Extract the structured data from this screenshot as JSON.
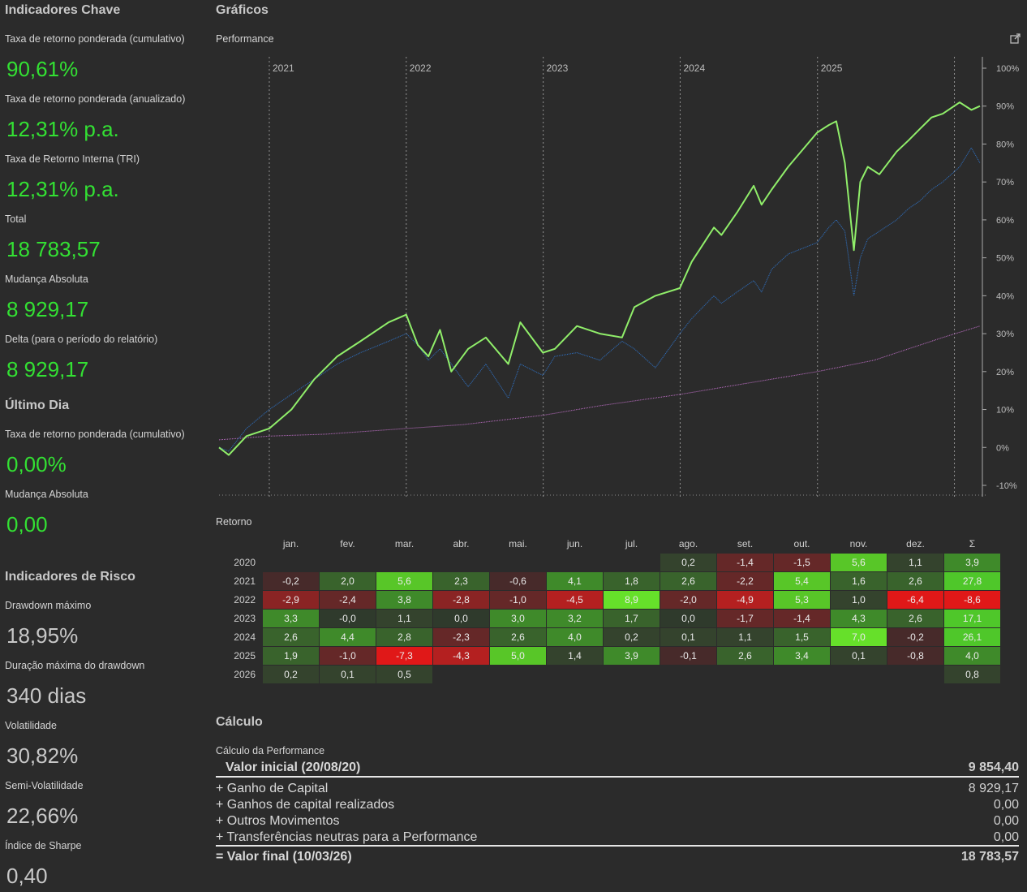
{
  "key_indicators": {
    "title": "Indicadores Chave",
    "items": [
      {
        "label": "Taxa de retorno ponderada (cumulativo)",
        "value": "90,61%"
      },
      {
        "label": "Taxa de retorno ponderada (anualizado)",
        "value": "12,31% p.a."
      },
      {
        "label": "Taxa de Retorno Interna (TRI)",
        "value": "12,31% p.a."
      },
      {
        "label": "Total",
        "value": "18 783,57"
      },
      {
        "label": "Mudança Absoluta",
        "value": "8 929,17"
      },
      {
        "label": "Delta (para o período do relatório)",
        "value": "8 929,17"
      }
    ]
  },
  "last_day": {
    "title": "Último Dia",
    "items": [
      {
        "label": "Taxa de retorno ponderada (cumulativo)",
        "value": "0,00%"
      },
      {
        "label": "Mudança Absoluta",
        "value": "0,00"
      }
    ]
  },
  "risk_indicators": {
    "title": "Indicadores de Risco",
    "items": [
      {
        "label": "Drawdown máximo",
        "value": "18,95%"
      },
      {
        "label": "Duração máxima do drawdown",
        "value": "340 dias"
      },
      {
        "label": "Volatilidade",
        "value": "30,82%"
      },
      {
        "label": "Semi-Volatilidade",
        "value": "22,66%"
      },
      {
        "label": "Índice de Sharpe",
        "value": "0,40"
      }
    ]
  },
  "charts": {
    "title": "Gráficos",
    "performance_label": "Performance",
    "external_icon": "external-link-icon"
  },
  "chart_data": {
    "type": "line",
    "x_year_labels": [
      "2021",
      "2022",
      "2023",
      "2024",
      "2025"
    ],
    "y_ticks": [
      "100%",
      "90%",
      "80%",
      "70%",
      "60%",
      "50%",
      "40%",
      "30%",
      "20%",
      "10%",
      "0%",
      "-10%"
    ],
    "ylim": [
      -10,
      100
    ],
    "x_range": [
      "2020-08-20",
      "2026-03-10"
    ],
    "grid": "vertical dashed at year starts",
    "series": [
      {
        "color": "#90ee6a",
        "x": [
          "2020-08-20",
          "2020-09-15",
          "2020-11-01",
          "2021-01-01",
          "2021-03-01",
          "2021-05-01",
          "2021-07-01",
          "2021-09-01",
          "2021-11-15",
          "2022-01-01",
          "2022-02-01",
          "2022-03-01",
          "2022-04-01",
          "2022-05-01",
          "2022-06-15",
          "2022-08-01",
          "2022-09-30",
          "2022-11-01",
          "2022-12-31",
          "2023-02-01",
          "2023-04-01",
          "2023-06-01",
          "2023-07-30",
          "2023-09-01",
          "2023-10-27",
          "2023-12-31",
          "2024-02-01",
          "2024-03-31",
          "2024-04-20",
          "2024-06-01",
          "2024-07-15",
          "2024-08-05",
          "2024-09-01",
          "2024-10-15",
          "2024-12-31",
          "2025-01-31",
          "2025-02-20",
          "2025-03-15",
          "2025-04-08",
          "2025-04-25",
          "2025-05-15",
          "2025-06-15",
          "2025-07-31",
          "2025-09-01",
          "2025-10-01",
          "2025-11-01",
          "2025-12-01",
          "2026-01-15",
          "2026-02-15",
          "2026-03-10"
        ],
        "y": [
          0,
          -2,
          3,
          5,
          10,
          18,
          24,
          28,
          33,
          35,
          27,
          24,
          31,
          20,
          26,
          29,
          22,
          33,
          25,
          26,
          32,
          30,
          29,
          37,
          40,
          42,
          49,
          58,
          56,
          62,
          69,
          64,
          68,
          74,
          83,
          85,
          86,
          75,
          52,
          70,
          74,
          72,
          78,
          81,
          84,
          87,
          88,
          91,
          89,
          90
        ]
      },
      {
        "color": "#2f6fbf",
        "x": [
          "2020-08-20",
          "2020-09-15",
          "2020-11-01",
          "2021-01-01",
          "2021-03-01",
          "2021-05-01",
          "2021-07-01",
          "2021-09-01",
          "2021-11-15",
          "2022-01-01",
          "2022-02-01",
          "2022-03-01",
          "2022-04-01",
          "2022-06-15",
          "2022-08-01",
          "2022-09-30",
          "2022-11-01",
          "2022-12-31",
          "2023-02-01",
          "2023-04-01",
          "2023-06-01",
          "2023-07-30",
          "2023-09-01",
          "2023-10-27",
          "2023-12-31",
          "2024-02-01",
          "2024-03-31",
          "2024-04-20",
          "2024-06-01",
          "2024-07-15",
          "2024-08-05",
          "2024-09-01",
          "2024-10-15",
          "2024-12-31",
          "2025-01-31",
          "2025-02-20",
          "2025-03-15",
          "2025-04-08",
          "2025-04-25",
          "2025-05-15",
          "2025-06-15",
          "2025-07-31",
          "2025-09-01",
          "2025-10-01",
          "2025-11-01",
          "2025-12-01",
          "2026-01-15",
          "2026-02-15",
          "2026-03-10"
        ],
        "y": [
          0,
          -1,
          5,
          10,
          14,
          18,
          22,
          25,
          28,
          30,
          27,
          23,
          26,
          16,
          22,
          13,
          22,
          19,
          24,
          25,
          23,
          28,
          26,
          21,
          30,
          34,
          40,
          38,
          41,
          44,
          41,
          47,
          51,
          54,
          58,
          60,
          57,
          40,
          50,
          55,
          57,
          60,
          63,
          65,
          68,
          70,
          74,
          79,
          75
        ]
      },
      {
        "color": "#c070c8",
        "x": [
          "2020-08-20",
          "2021-01-01",
          "2021-06-01",
          "2022-01-01",
          "2022-06-01",
          "2023-01-01",
          "2023-06-01",
          "2024-01-01",
          "2024-06-01",
          "2025-01-01",
          "2025-06-01",
          "2025-12-01",
          "2026-03-10"
        ],
        "y": [
          2,
          3,
          3.5,
          5,
          6,
          8.5,
          11,
          14,
          16.5,
          20,
          23,
          29,
          32
        ]
      }
    ]
  },
  "returns": {
    "label": "Retorno",
    "headers": [
      "jan.",
      "fev.",
      "mar.",
      "abr.",
      "mai.",
      "jun.",
      "jul.",
      "ago.",
      "set.",
      "out.",
      "nov.",
      "dez.",
      "Σ"
    ],
    "rows": [
      {
        "year": "2020",
        "values": [
          "",
          "",
          "",
          "",
          "",
          "",
          "",
          "0,2",
          "-1,4",
          "-1,5",
          "5,6",
          "1,1",
          "3,9"
        ]
      },
      {
        "year": "2021",
        "values": [
          "-0,2",
          "2,0",
          "5,6",
          "2,3",
          "-0,6",
          "4,1",
          "1,8",
          "2,6",
          "-2,2",
          "5,4",
          "1,6",
          "2,6",
          "27,8"
        ]
      },
      {
        "year": "2022",
        "values": [
          "-2,9",
          "-2,4",
          "3,8",
          "-2,8",
          "-1,0",
          "-4,5",
          "8,9",
          "-2,0",
          "-4,9",
          "5,3",
          "1,0",
          "-6,4",
          "-8,6"
        ]
      },
      {
        "year": "2023",
        "values": [
          "3,3",
          "-0,0",
          "1,1",
          "0,0",
          "3,0",
          "3,2",
          "1,7",
          "0,0",
          "-1,7",
          "-1,4",
          "4,3",
          "2,6",
          "17,1"
        ]
      },
      {
        "year": "2024",
        "values": [
          "2,6",
          "4,4",
          "2,8",
          "-2,3",
          "2,6",
          "4,0",
          "0,2",
          "0,1",
          "1,1",
          "1,5",
          "7,0",
          "-0,2",
          "26,1"
        ]
      },
      {
        "year": "2025",
        "values": [
          "1,9",
          "-1,0",
          "-7,3",
          "-4,3",
          "5,0",
          "1,4",
          "3,9",
          "-0,1",
          "2,6",
          "3,4",
          "0,1",
          "-0,8",
          "4,0"
        ]
      },
      {
        "year": "2026",
        "values": [
          "0,2",
          "0,1",
          "0,5",
          "",
          "",
          "",
          "",
          "",
          "",
          "",
          "",
          "",
          "0,8"
        ]
      }
    ]
  },
  "calculation": {
    "title": "Cálculo",
    "subtitle": "Cálculo da Performance",
    "initial": {
      "label": "Valor inicial (20/08/20)",
      "value": "9 854,40"
    },
    "lines": [
      {
        "label": "+ Ganho de Capital",
        "value": "8 929,17"
      },
      {
        "label": "+ Ganhos de capital realizados",
        "value": "0,00"
      },
      {
        "label": "+ Outros Movimentos",
        "value": "0,00"
      },
      {
        "label": "+ Transferências neutras para a Performance",
        "value": "0,00"
      }
    ],
    "final": {
      "label": "= Valor final (10/03/26)",
      "value": "18 783,57"
    }
  }
}
